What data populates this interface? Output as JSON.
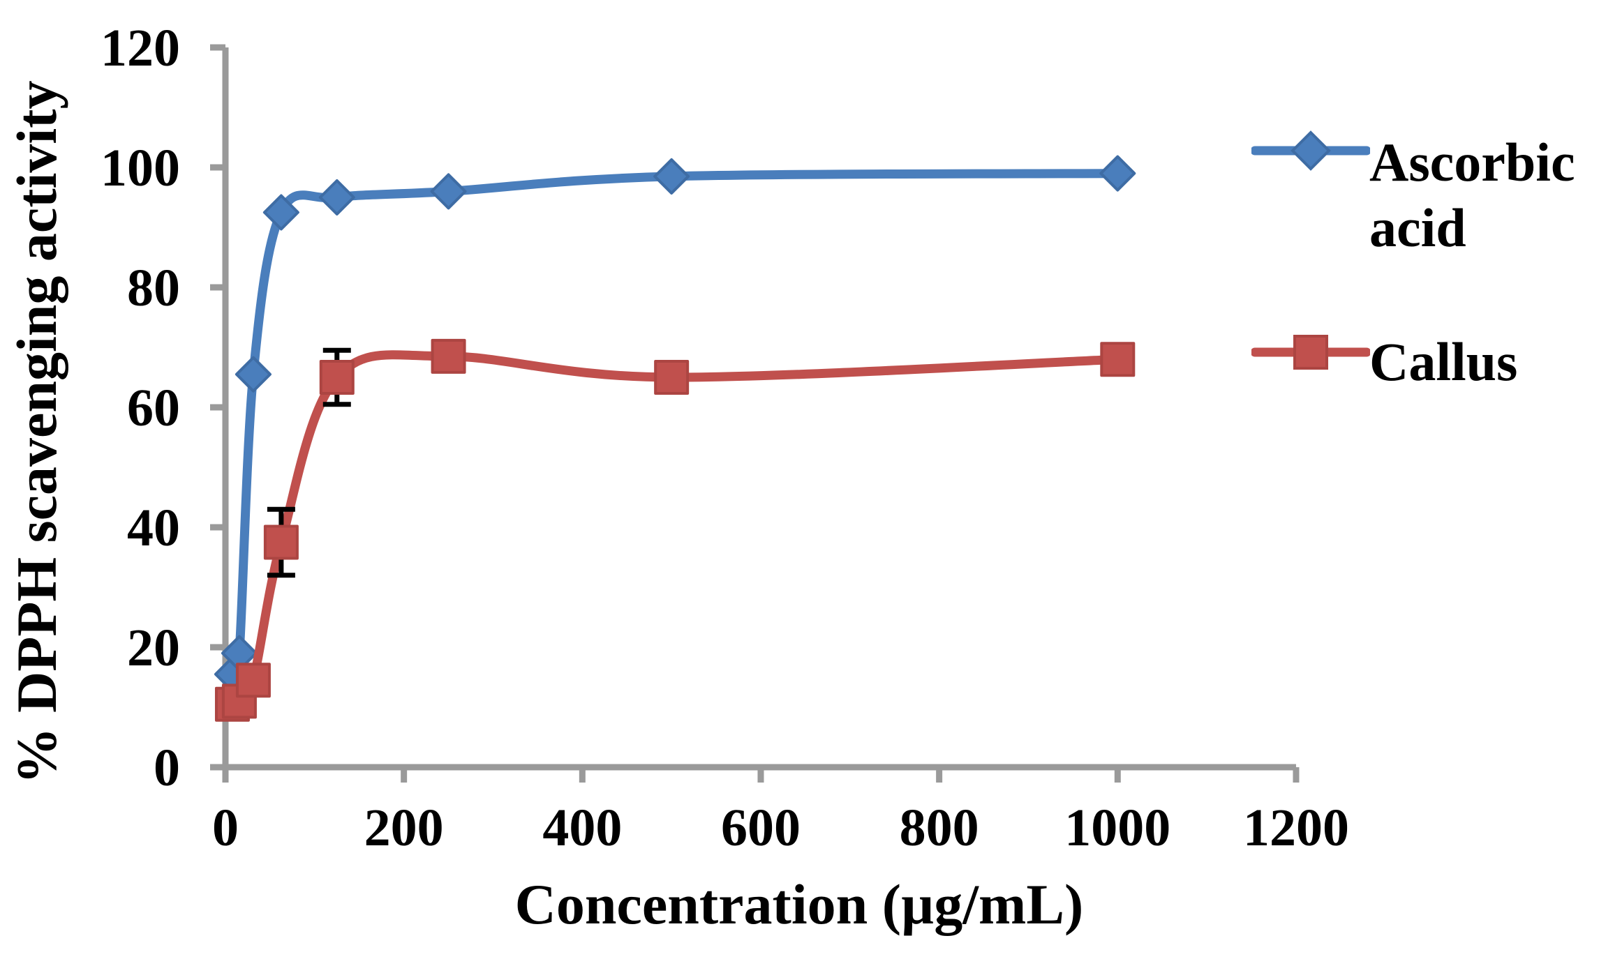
{
  "chart_data": {
    "type": "line",
    "title": "",
    "xlabel": "Concentration (µg/mL)",
    "ylabel": "% DPPH scavenging activity",
    "xlim": [
      0,
      1200
    ],
    "ylim": [
      0,
      120
    ],
    "x_ticks": [
      0,
      200,
      400,
      600,
      800,
      1000,
      1200
    ],
    "y_ticks": [
      0,
      20,
      40,
      60,
      80,
      100,
      120
    ],
    "grid": false,
    "legend_position": "right",
    "axis_color": "#9A9A9A",
    "text_color": "#000000",
    "error_bar_color": "#000000",
    "x": [
      7.8,
      15.6,
      31.25,
      62.5,
      125,
      250,
      500,
      1000
    ],
    "series": [
      {
        "name": "Ascorbic acid",
        "color": "#4A7EBC",
        "edge_color": "#3E6CA4",
        "marker": "diamond",
        "values": [
          15.5,
          19,
          65.5,
          92.5,
          95,
          96,
          98.5,
          99
        ],
        "error_bars": []
      },
      {
        "name": "Callus",
        "color": "#C0504D",
        "edge_color": "#AC4542",
        "marker": "square",
        "values": [
          10.5,
          11,
          14.5,
          37.5,
          65,
          68.5,
          65,
          68
        ],
        "error_bars": [
          {
            "index": 3,
            "plus": 5.5,
            "minus": 5.5
          },
          {
            "index": 4,
            "plus": 4.5,
            "minus": 4.5
          }
        ]
      }
    ]
  }
}
